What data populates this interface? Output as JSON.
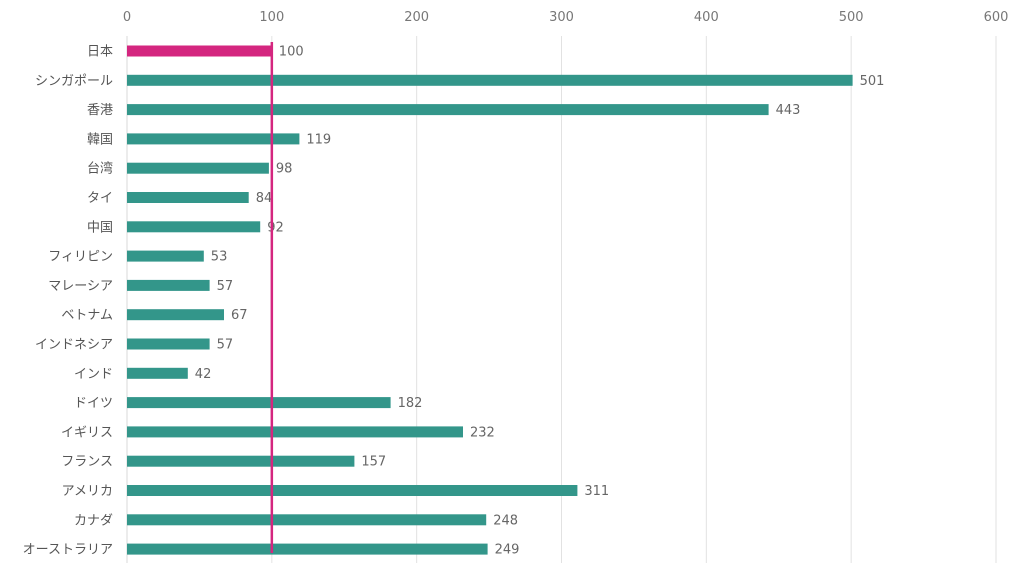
{
  "chart_data": {
    "type": "bar",
    "orientation": "horizontal",
    "title": "",
    "xlabel": "",
    "ylabel": "",
    "xlim": [
      0,
      600
    ],
    "xticks": [
      0,
      100,
      200,
      300,
      400,
      500,
      600
    ],
    "xtick_labels": [
      "0",
      "100",
      "200",
      "300",
      "400",
      "500",
      "600"
    ],
    "grid": true,
    "categories": [
      "日本",
      "シンガポール",
      "香港",
      "韓国",
      "台湾",
      "タイ",
      "中国",
      "フィリピン",
      "マレーシア",
      "ベトナム",
      "インドネシア",
      "インド",
      "ドイツ",
      "イギリス",
      "フランス",
      "アメリカ",
      "カナダ",
      "オーストラリア"
    ],
    "values": [
      100,
      501,
      443,
      119,
      98,
      84,
      92,
      53,
      57,
      67,
      57,
      42,
      182,
      232,
      157,
      311,
      248,
      249
    ],
    "value_labels": [
      "100",
      "501",
      "443",
      "119",
      "98",
      "84",
      "92",
      "53",
      "57",
      "67",
      "57",
      "42",
      "182",
      "232",
      "157",
      "311",
      "248",
      "249"
    ],
    "highlight_category": "日本",
    "reference_line": 100,
    "colors": {
      "bar": "#33968a",
      "highlight": "#d4267f",
      "reference_line": "#d4267f"
    }
  }
}
